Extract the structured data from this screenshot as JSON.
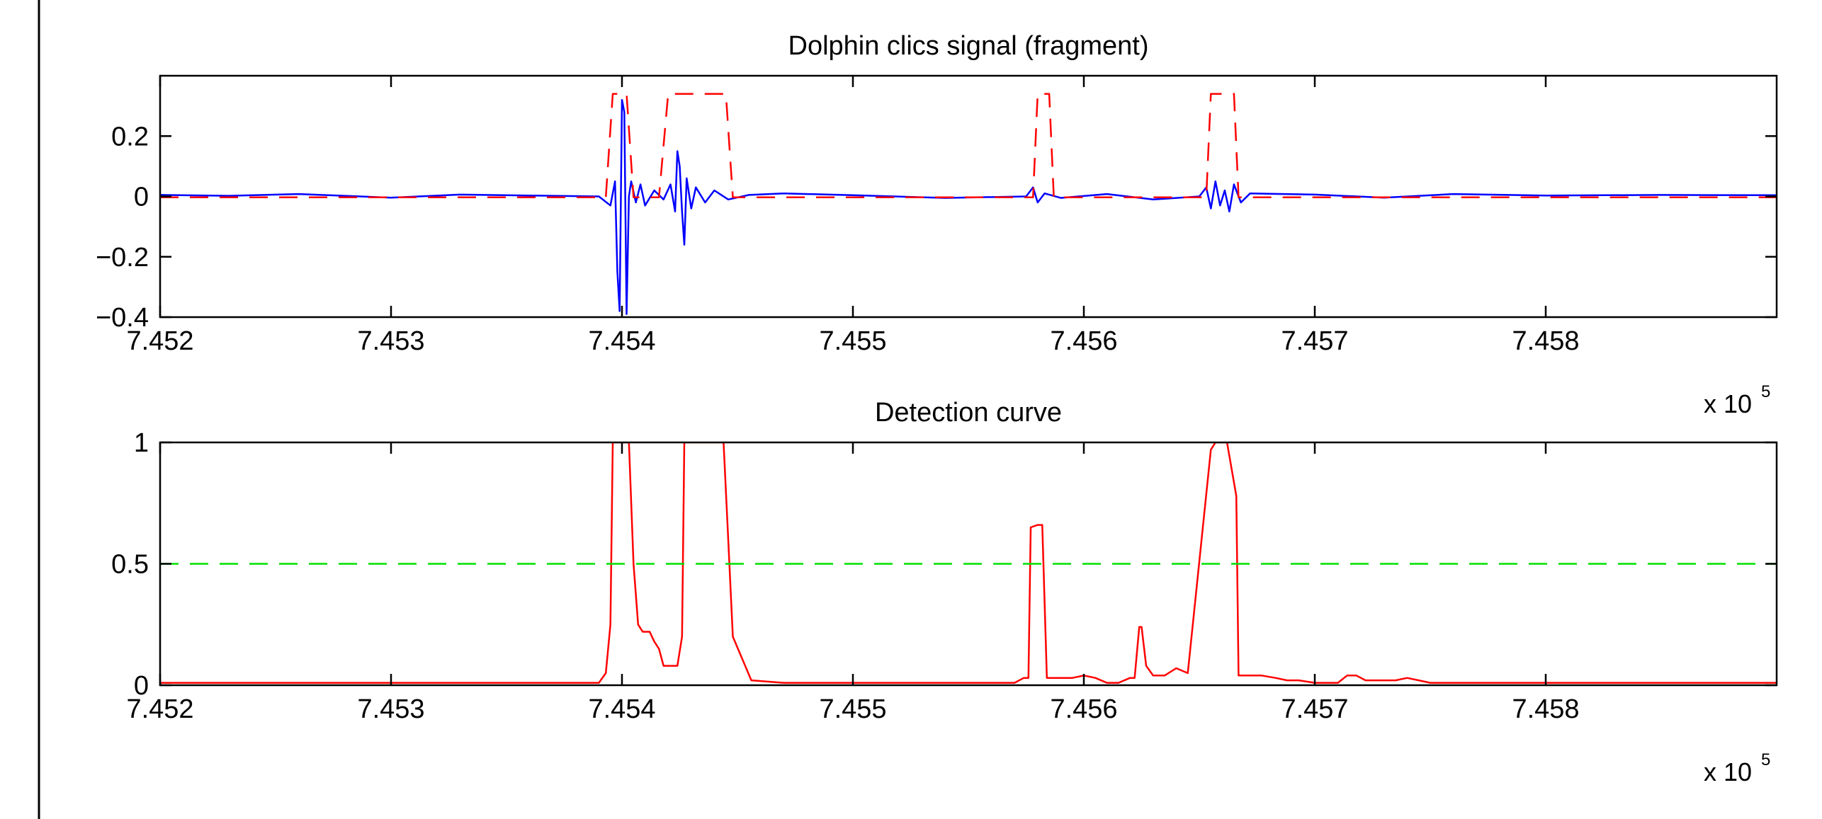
{
  "chart_data": [
    {
      "type": "line",
      "title": "Dolphin clics signal (fragment)",
      "xlabel": "",
      "ylabel": "",
      "xlim": [
        745200,
        745900
      ],
      "ylim": [
        -0.4,
        0.4
      ],
      "x_multiplier_label": "x 10",
      "x_multiplier_exp": "5",
      "xticks": [
        745200,
        745300,
        745400,
        745500,
        745600,
        745700,
        745800
      ],
      "xtick_labels": [
        "7.452",
        "7.453",
        "7.454",
        "7.455",
        "7.456",
        "7.457",
        "7.458"
      ],
      "yticks": [
        -0.4,
        -0.2,
        0,
        0.2
      ],
      "ytick_labels": [
        "−0.4",
        "−0.2",
        "0",
        "0.2"
      ],
      "grid": false,
      "series": [
        {
          "color": "#0000ff",
          "style": "solid",
          "x": [
            745200,
            745230,
            745260,
            745300,
            745330,
            745360,
            745390,
            745395,
            745397,
            745398,
            745399,
            745400,
            745401,
            745402,
            745403,
            745404,
            745406,
            745408,
            745410,
            745414,
            745418,
            745421,
            745423,
            745424,
            745425,
            745426,
            745427,
            745428,
            745430,
            745432,
            745436,
            745440,
            745446,
            745455,
            745470,
            745500,
            745540,
            745575,
            745578,
            745580,
            745583,
            745590,
            745610,
            745630,
            745650,
            745653,
            745655,
            745657,
            745659,
            745661,
            745663,
            745665,
            745668,
            745672,
            745700,
            745730,
            745760,
            745800,
            745850,
            745900
          ],
          "y": [
            0.005,
            0.002,
            0.008,
            -0.004,
            0.006,
            0.003,
            0.0,
            -0.03,
            0.05,
            -0.25,
            -0.38,
            0.32,
            0.28,
            -0.39,
            0.0,
            0.05,
            -0.02,
            0.04,
            -0.03,
            0.02,
            -0.01,
            0.04,
            -0.05,
            0.15,
            0.1,
            -0.05,
            -0.16,
            0.06,
            -0.04,
            0.03,
            -0.02,
            0.02,
            -0.01,
            0.005,
            0.01,
            0.004,
            -0.005,
            0.0,
            0.03,
            -0.02,
            0.01,
            -0.005,
            0.008,
            -0.01,
            0.0,
            0.03,
            -0.04,
            0.05,
            -0.03,
            0.02,
            -0.05,
            0.04,
            -0.02,
            0.01,
            0.006,
            -0.004,
            0.008,
            0.003,
            0.005,
            0.004
          ]
        },
        {
          "color": "#ff0000",
          "style": "dashed",
          "x": [
            745200,
            745393,
            745396,
            745402,
            745405,
            745416,
            745420,
            745445,
            745448,
            745578,
            745580,
            745585,
            745587,
            745653,
            745655,
            745665,
            745667,
            745900
          ],
          "y": [
            -0.003,
            -0.003,
            0.34,
            0.34,
            -0.003,
            -0.003,
            0.34,
            0.34,
            -0.003,
            -0.003,
            0.34,
            0.34,
            -0.003,
            -0.003,
            0.34,
            0.34,
            -0.003,
            -0.003
          ]
        }
      ]
    },
    {
      "type": "line",
      "title": "Detection curve",
      "xlabel": "",
      "ylabel": "",
      "xlim": [
        745200,
        745900
      ],
      "ylim": [
        0,
        1
      ],
      "x_multiplier_label": "x 10",
      "x_multiplier_exp": "5",
      "xticks": [
        745200,
        745300,
        745400,
        745500,
        745600,
        745700,
        745800
      ],
      "xtick_labels": [
        "7.452",
        "7.453",
        "7.454",
        "7.455",
        "7.456",
        "7.457",
        "7.458"
      ],
      "yticks": [
        0,
        0.5,
        1
      ],
      "ytick_labels": [
        "0",
        "0.5",
        "1"
      ],
      "grid": false,
      "series": [
        {
          "color": "#ff0000",
          "style": "solid",
          "x": [
            745200,
            745390,
            745393,
            745395,
            745396,
            745403,
            745405,
            745407,
            745409,
            745412,
            745414,
            745416,
            745418,
            745420,
            745424,
            745426,
            745427,
            745440,
            745444,
            745446,
            745448,
            745456,
            745470,
            745500,
            745570,
            745574,
            745576,
            745577,
            745580,
            745582,
            745584,
            745588,
            745595,
            745600,
            745605,
            745610,
            745615,
            745620,
            745622,
            745624,
            745625,
            745627,
            745630,
            745635,
            745640,
            745645,
            745655,
            745657,
            745662,
            745666,
            745667,
            745670,
            745677,
            745683,
            745688,
            745693,
            745700,
            745710,
            745714,
            745718,
            745722,
            745735,
            745740,
            745745,
            745750,
            745800,
            745850,
            745900
          ],
          "y": [
            0.01,
            0.01,
            0.05,
            0.25,
            1.0,
            1.0,
            0.5,
            0.25,
            0.22,
            0.22,
            0.18,
            0.15,
            0.08,
            0.08,
            0.08,
            0.2,
            1.0,
            1.0,
            1.0,
            0.6,
            0.2,
            0.02,
            0.01,
            0.01,
            0.01,
            0.03,
            0.03,
            0.65,
            0.66,
            0.66,
            0.03,
            0.03,
            0.03,
            0.04,
            0.03,
            0.01,
            0.01,
            0.03,
            0.03,
            0.24,
            0.24,
            0.08,
            0.04,
            0.04,
            0.07,
            0.05,
            0.97,
            1.0,
            1.0,
            0.78,
            0.04,
            0.04,
            0.04,
            0.03,
            0.02,
            0.02,
            0.01,
            0.01,
            0.04,
            0.04,
            0.02,
            0.02,
            0.03,
            0.02,
            0.01,
            0.01,
            0.01,
            0.01
          ]
        },
        {
          "color": "#00e000",
          "style": "dashed",
          "x": [
            745200,
            745900
          ],
          "y": [
            0.5,
            0.5
          ]
        }
      ]
    }
  ]
}
